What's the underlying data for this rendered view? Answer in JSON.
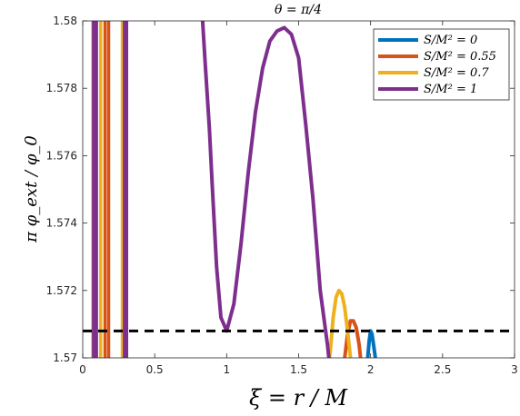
{
  "chart_data": {
    "type": "line",
    "title": "θ = π/4",
    "xlabel": "ξ = r / M",
    "ylabel": "π φ_ext / φ_0",
    "xlim": [
      0,
      3
    ],
    "ylim": [
      1.57,
      1.58
    ],
    "xticks": [
      "0",
      "0.5",
      "1",
      "1.5",
      "2",
      "2.5",
      "3"
    ],
    "xtick_values": [
      0,
      0.5,
      1,
      1.5,
      2,
      2.5,
      3
    ],
    "yticks": [
      "1.57",
      "1.572",
      "1.574",
      "1.576",
      "1.578",
      "1.58"
    ],
    "ytick_values": [
      1.57,
      1.572,
      1.574,
      1.576,
      1.578,
      1.58
    ],
    "grid": false,
    "legend_position": "top-right",
    "reference_line": {
      "y": 1.5708,
      "style": "dashed",
      "color": "#000000"
    },
    "series": [
      {
        "name": "S/M² = 0",
        "color": "#0072BD",
        "x": [
          1.98,
          1.99,
          2.0,
          2.01,
          2.02,
          2.03,
          2.04,
          2.05
        ],
        "y": [
          1.57,
          1.5705,
          1.5708,
          1.5707,
          1.5704,
          1.5701,
          1.5697,
          1.5692
        ]
      },
      {
        "name": "S/M² = 0.55",
        "color": "#D95319",
        "vertical_lines_x": [
          0.075,
          0.095,
          0.155,
          0.18
        ],
        "x": [
          1.82,
          1.84,
          1.86,
          1.88,
          1.9,
          1.92,
          1.94
        ],
        "y": [
          1.57,
          1.5707,
          1.5711,
          1.5711,
          1.5709,
          1.5704,
          1.5696
        ]
      },
      {
        "name": "S/M² = 0.7",
        "color": "#EDB120",
        "vertical_lines_x": [
          0.07,
          0.125,
          0.275
        ],
        "x": [
          1.7,
          1.72,
          1.74,
          1.76,
          1.78,
          1.8,
          1.82,
          1.84,
          1.86,
          1.88
        ],
        "y": [
          1.5696,
          1.5702,
          1.5712,
          1.5718,
          1.572,
          1.5719,
          1.5715,
          1.5708,
          1.57,
          1.5692
        ]
      },
      {
        "name": "S/M² = 1",
        "color": "#7E2F8E",
        "vertical_lines_x": [
          0.075,
          0.095,
          0.29,
          0.305
        ],
        "x": [
          0.83,
          0.85,
          0.88,
          0.9,
          0.93,
          0.96,
          1.0,
          1.05,
          1.1,
          1.15,
          1.2,
          1.25,
          1.3,
          1.35,
          1.4,
          1.45,
          1.5,
          1.55,
          1.6,
          1.65,
          1.7,
          1.72
        ],
        "y": [
          1.5802,
          1.5788,
          1.5768,
          1.5751,
          1.5727,
          1.5712,
          1.5708,
          1.5716,
          1.5734,
          1.5755,
          1.5773,
          1.5786,
          1.5794,
          1.5797,
          1.5798,
          1.5796,
          1.5789,
          1.5769,
          1.5747,
          1.572,
          1.5704,
          1.5696
        ]
      }
    ]
  }
}
